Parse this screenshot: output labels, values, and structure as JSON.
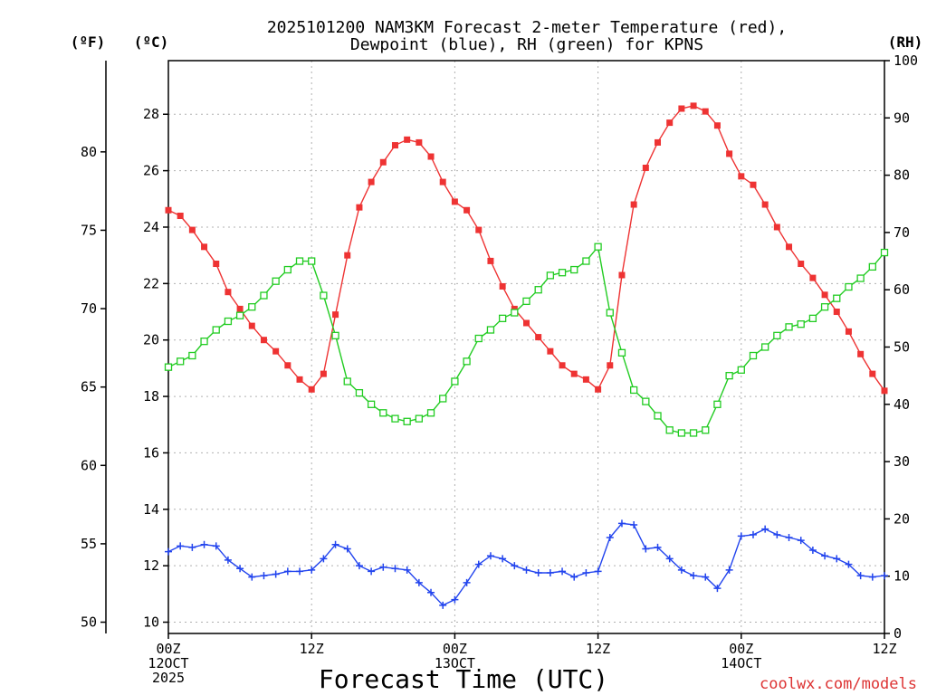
{
  "chart_data": {
    "type": "line",
    "title": "2025101200 NAM3KM Forecast 2-meter Temperature (red),",
    "subtitle": "Dewpoint (blue), RH (green) for KPNS",
    "xlabel": "Forecast Time (UTC)",
    "credit": "coolwx.com/models",
    "left_axis_f": {
      "unit": "(ºF)",
      "ticks": [
        50,
        55,
        60,
        65,
        70,
        75,
        80
      ]
    },
    "left_axis_c": {
      "unit": "(ºC)",
      "ticks": [
        10,
        12,
        14,
        16,
        18,
        20,
        22,
        24,
        26,
        28
      ],
      "ylim": [
        9.6,
        29.9
      ]
    },
    "right_axis": {
      "unit": "(RH)",
      "ticks": [
        0,
        10,
        20,
        30,
        40,
        50,
        60,
        70,
        80,
        90,
        100
      ],
      "ylim": [
        0,
        100
      ]
    },
    "x_ticks": [
      {
        "hour": 0,
        "lines": [
          "00Z",
          "12OCT",
          "2025"
        ]
      },
      {
        "hour": 12,
        "lines": [
          "12Z"
        ]
      },
      {
        "hour": 24,
        "lines": [
          "00Z",
          "13OCT"
        ]
      },
      {
        "hour": 36,
        "lines": [
          "12Z"
        ]
      },
      {
        "hour": 48,
        "lines": [
          "00Z",
          "14OCT"
        ]
      },
      {
        "hour": 60,
        "lines": [
          "12Z"
        ]
      }
    ],
    "x_range_hours": [
      0,
      60
    ],
    "series": [
      {
        "name": "Temperature",
        "color": "#ee3333",
        "marker": "filled-square",
        "axis": "celsius",
        "x": [
          0,
          1,
          2,
          3,
          4,
          5,
          6,
          7,
          8,
          9,
          10,
          11,
          12,
          13,
          14,
          15,
          16,
          17,
          18,
          19,
          20,
          21,
          22,
          23,
          24,
          25,
          26,
          27,
          28,
          29,
          30,
          31,
          32,
          33,
          34,
          35,
          36,
          37,
          38,
          39,
          40,
          41,
          42,
          43,
          44,
          45,
          46,
          47,
          48,
          49,
          50,
          51,
          52,
          53,
          54,
          55,
          56,
          57,
          58,
          59,
          60
        ],
        "values": [
          24.6,
          24.4,
          23.9,
          23.3,
          22.7,
          21.7,
          21.1,
          20.5,
          20.0,
          19.6,
          19.1,
          18.6,
          18.25,
          18.8,
          20.9,
          23.0,
          24.7,
          25.6,
          26.3,
          26.9,
          27.1,
          27.0,
          26.5,
          25.6,
          24.9,
          24.6,
          23.9,
          22.8,
          21.9,
          21.1,
          20.6,
          20.1,
          19.6,
          19.1,
          18.8,
          18.6,
          18.25,
          19.1,
          22.3,
          24.8,
          26.1,
          27.0,
          27.7,
          28.2,
          28.3,
          28.1,
          27.6,
          26.6,
          25.8,
          25.5,
          24.8,
          24.0,
          23.3,
          22.7,
          22.2,
          21.6,
          21.0,
          20.3,
          19.5,
          18.8,
          18.2
        ]
      },
      {
        "name": "Dewpoint",
        "color": "#2244ee",
        "marker": "plus",
        "axis": "celsius",
        "x": [
          0,
          1,
          2,
          3,
          4,
          5,
          6,
          7,
          8,
          9,
          10,
          11,
          12,
          13,
          14,
          15,
          16,
          17,
          18,
          19,
          20,
          21,
          22,
          23,
          24,
          25,
          26,
          27,
          28,
          29,
          30,
          31,
          32,
          33,
          34,
          35,
          36,
          37,
          38,
          39,
          40,
          41,
          42,
          43,
          44,
          45,
          46,
          47,
          48,
          49,
          50,
          51,
          52,
          53,
          54,
          55,
          56,
          57,
          58,
          59,
          60
        ],
        "values": [
          12.5,
          12.7,
          12.65,
          12.75,
          12.7,
          12.2,
          11.9,
          11.6,
          11.65,
          11.7,
          11.8,
          11.8,
          11.85,
          12.25,
          12.75,
          12.6,
          12.0,
          11.8,
          11.95,
          11.9,
          11.85,
          11.4,
          11.05,
          10.6,
          10.8,
          11.4,
          12.05,
          12.35,
          12.25,
          12.0,
          11.85,
          11.75,
          11.75,
          11.8,
          11.6,
          11.75,
          11.8,
          13.0,
          13.5,
          13.45,
          12.6,
          12.65,
          12.25,
          11.85,
          11.65,
          11.6,
          11.2,
          11.85,
          13.05,
          13.1,
          13.3,
          13.1,
          13.0,
          12.9,
          12.55,
          12.35,
          12.25,
          12.05,
          11.65,
          11.6,
          11.65
        ]
      },
      {
        "name": "RH",
        "color": "#22cc22",
        "marker": "open-square",
        "axis": "rh",
        "x": [
          0,
          1,
          2,
          3,
          4,
          5,
          6,
          7,
          8,
          9,
          10,
          11,
          12,
          13,
          14,
          15,
          16,
          17,
          18,
          19,
          20,
          21,
          22,
          23,
          24,
          25,
          26,
          27,
          28,
          29,
          30,
          31,
          32,
          33,
          34,
          35,
          36,
          37,
          38,
          39,
          40,
          41,
          42,
          43,
          44,
          45,
          46,
          47,
          48,
          49,
          50,
          51,
          52,
          53,
          54,
          55,
          56,
          57,
          58,
          59,
          60
        ],
        "values": [
          46.5,
          47.5,
          48.5,
          51,
          53,
          54.5,
          55.5,
          57,
          59,
          61.5,
          63.5,
          65,
          65,
          59,
          52,
          44,
          42,
          40,
          38.5,
          37.5,
          37,
          37.5,
          38.5,
          41,
          44,
          47.5,
          51.5,
          53,
          55,
          56,
          58,
          60,
          62.5,
          63,
          63.5,
          65,
          67.5,
          56,
          49,
          42.5,
          40.5,
          38,
          35.5,
          35,
          35,
          35.5,
          40,
          45,
          46,
          48.5,
          50,
          52,
          53.5,
          54,
          55,
          57,
          58.5,
          60.5,
          62,
          64,
          66.5
        ]
      }
    ]
  }
}
